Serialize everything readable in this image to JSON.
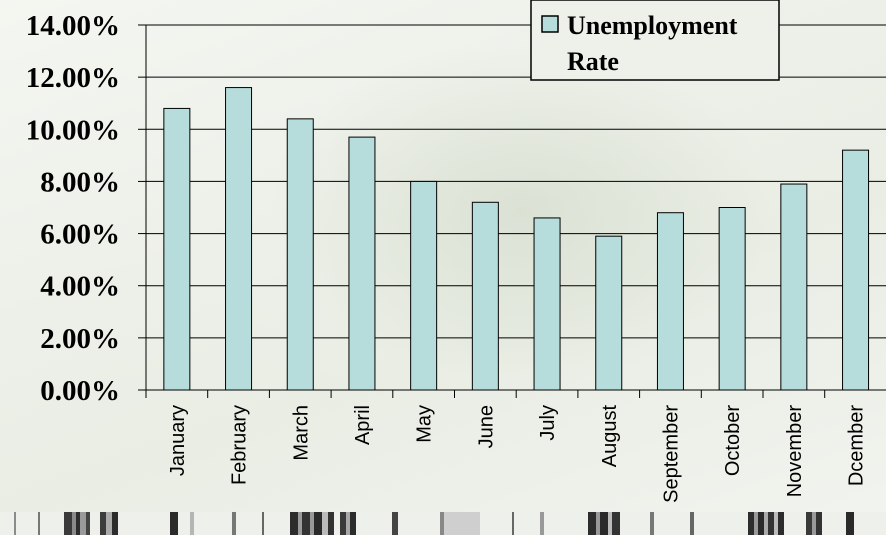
{
  "chart_data": {
    "type": "bar",
    "categories": [
      "January",
      "February",
      "March",
      "April",
      "May",
      "June",
      "July",
      "August",
      "September",
      "October",
      "November",
      "Dcember"
    ],
    "series": [
      {
        "name": "Unemployment Rate",
        "values": [
          10.8,
          11.6,
          10.4,
          9.7,
          8.0,
          7.2,
          6.6,
          5.9,
          6.8,
          7.0,
          7.9,
          9.2
        ]
      }
    ],
    "ylim": [
      0,
      14
    ],
    "yticks": [
      "0.00%",
      "2.00%",
      "4.00%",
      "6.00%",
      "8.00%",
      "10.00%",
      "12.00%",
      "14.00%"
    ],
    "legend_lines": [
      "Unemployment",
      "Rate"
    ],
    "legend_position": "top-right",
    "grid": "horizontal",
    "colors": {
      "bar_fill": "#b7dcdc",
      "bar_stroke": "#000000",
      "grid": "#000000"
    }
  }
}
